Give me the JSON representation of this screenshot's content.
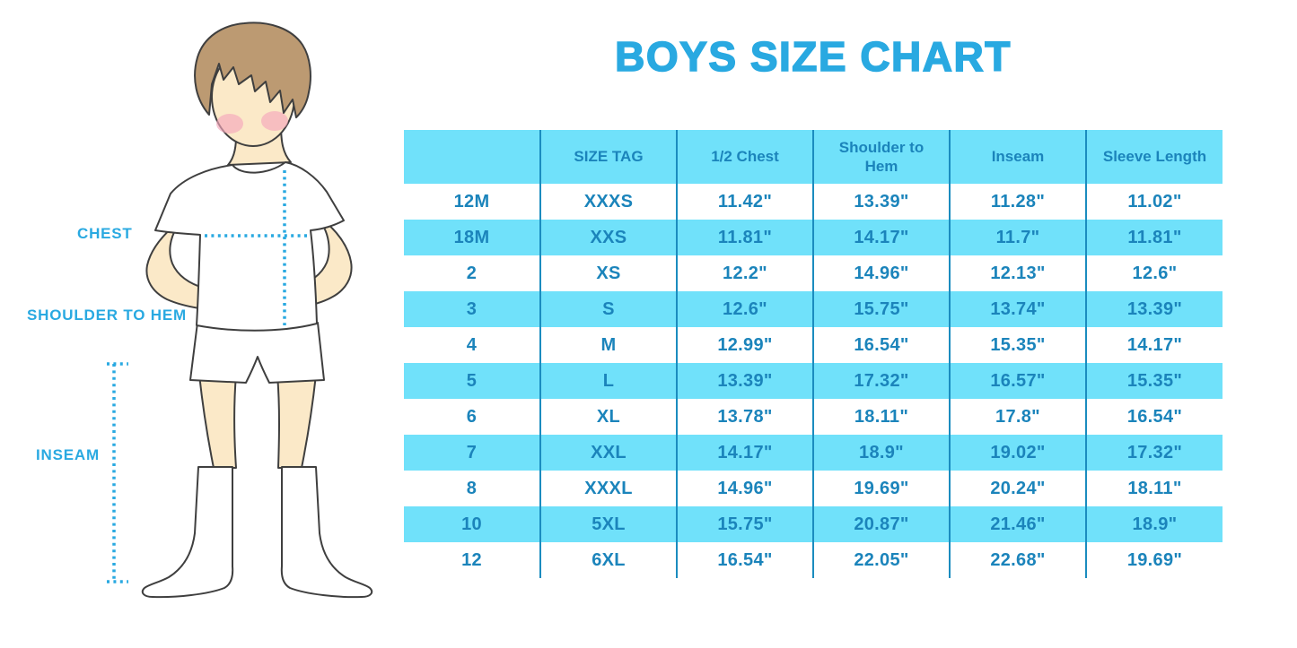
{
  "title": "BOYS SIZE CHART",
  "figure": {
    "illustration": "boy-in-tshirt-shorts-and-socks",
    "labels": {
      "chest": "CHEST",
      "shoulder_to_hem": "SHOULDER TO HEM",
      "inseam": "INSEAM"
    }
  },
  "colors": {
    "accent_blue": "#29A9E1",
    "table_text_blue": "#1B84BB",
    "row_cyan": "#70E1FA",
    "divider_blue": "#1B8CBF",
    "hair_brown": "#BC9A72",
    "skin": "#FBE9C8",
    "blush_pink": "#F5A8BC"
  },
  "chart_data": {
    "type": "table",
    "title": "BOYS SIZE CHART",
    "columns": [
      "",
      "SIZE TAG",
      "1/2 Chest",
      "Shoulder to Hem",
      "Inseam",
      "Sleeve Length"
    ],
    "rows": [
      [
        "12M",
        "XXXS",
        "11.42\"",
        "13.39\"",
        "11.28\"",
        "11.02\""
      ],
      [
        "18M",
        "XXS",
        "11.81\"",
        "14.17\"",
        "11.7\"",
        "11.81\""
      ],
      [
        "2",
        "XS",
        "12.2\"",
        "14.96\"",
        "12.13\"",
        "12.6\""
      ],
      [
        "3",
        "S",
        "12.6\"",
        "15.75\"",
        "13.74\"",
        "13.39\""
      ],
      [
        "4",
        "M",
        "12.99\"",
        "16.54\"",
        "15.35\"",
        "14.17\""
      ],
      [
        "5",
        "L",
        "13.39\"",
        "17.32\"",
        "16.57\"",
        "15.35\""
      ],
      [
        "6",
        "XL",
        "13.78\"",
        "18.11\"",
        "17.8\"",
        "16.54\""
      ],
      [
        "7",
        "XXL",
        "14.17\"",
        "18.9\"",
        "19.02\"",
        "17.32\""
      ],
      [
        "8",
        "XXXL",
        "14.96\"",
        "19.69\"",
        "20.24\"",
        "18.11\""
      ],
      [
        "10",
        "5XL",
        "15.75\"",
        "20.87\"",
        "21.46\"",
        "18.9\""
      ],
      [
        "12",
        "6XL",
        "16.54\"",
        "22.05\"",
        "22.68\"",
        "19.69\""
      ]
    ],
    "header_background": "#70E1FA",
    "stripe_pattern": "header cyan, then data rows alternate white/cyan starting white",
    "grid": "vertical column dividers only, no horizontal or outer borders"
  }
}
